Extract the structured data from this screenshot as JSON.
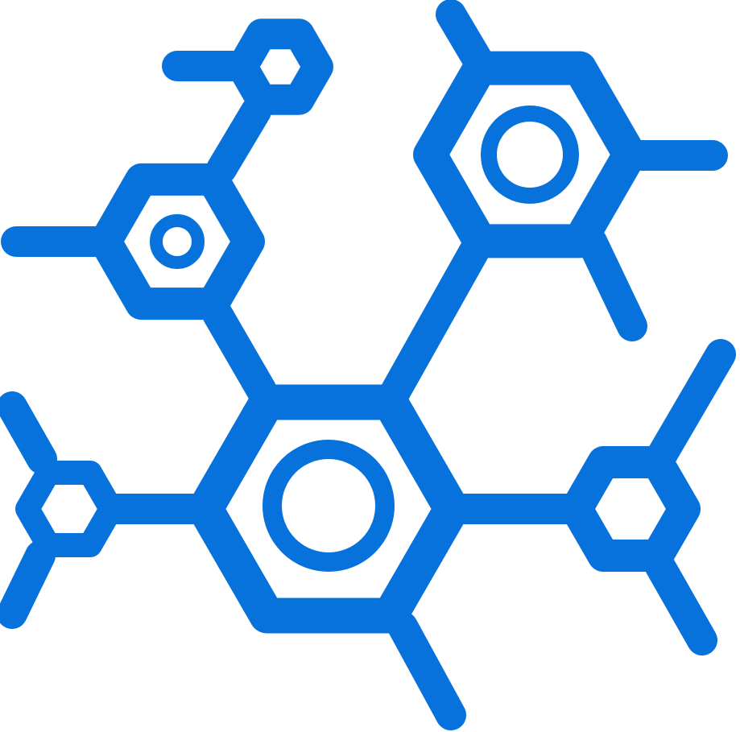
{
  "icon": {
    "name": "molecule-icon",
    "color": "#0872dc",
    "background": "#ffffff",
    "description": "",
    "parts": {
      "rings": 6,
      "inner_circles": 3,
      "bond_lines": 15
    }
  }
}
